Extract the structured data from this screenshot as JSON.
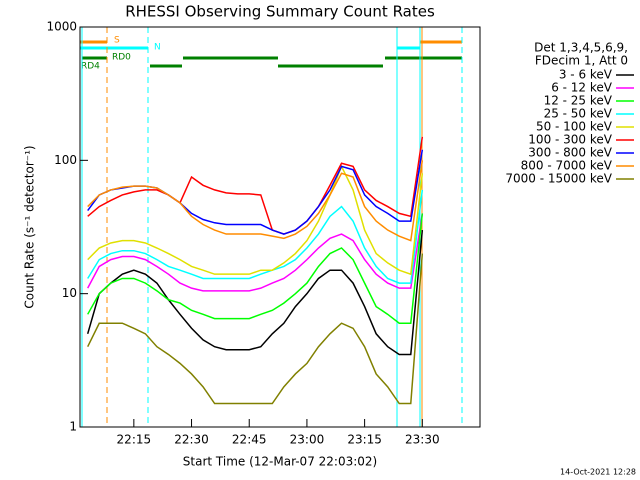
{
  "chart_data": {
    "type": "line",
    "title": "RHESSI Observing Summary Count Rates",
    "x_label": "Start Time (12-Mar-07 22:03:02)",
    "y_label": "Count Rate (s⁻¹ detector⁻¹)",
    "footer": "14-Oct-2021 12:28",
    "legend_header": [
      "Det 1,3,4,5,6,9,",
      "FDecim 1, Att 0"
    ],
    "flags": [
      "S",
      "N",
      "RD0",
      "RD4"
    ],
    "log_y": true,
    "xlim": [
      "22:01",
      "23:45"
    ],
    "xticks": [
      "22:15",
      "22:30",
      "22:45",
      "23:00",
      "23:15",
      "23:30"
    ],
    "ylim": [
      1,
      1000
    ],
    "yticks": [
      1,
      10,
      100,
      1000
    ],
    "x": [
      "22:03",
      "22:06",
      "22:09",
      "22:12",
      "22:15",
      "22:18",
      "22:21",
      "22:24",
      "22:27",
      "22:30",
      "22:33",
      "22:36",
      "22:39",
      "22:42",
      "22:45",
      "22:48",
      "22:51",
      "22:54",
      "22:57",
      "23:00",
      "23:03",
      "23:06",
      "23:09",
      "23:12",
      "23:15",
      "23:18",
      "23:21",
      "23:24",
      "23:27",
      "23:30"
    ],
    "series": [
      {
        "name": "3 - 6 keV",
        "color": "#000000",
        "values": [
          5,
          10,
          12,
          14,
          15,
          14,
          12,
          9,
          7,
          5.5,
          4.5,
          4,
          3.8,
          3.8,
          3.8,
          4,
          5,
          6,
          8,
          10,
          13,
          15,
          15,
          12,
          8,
          5,
          4,
          3.5,
          3.5,
          30
        ]
      },
      {
        "name": "6 - 12 keV",
        "color": "#ff00ff",
        "values": [
          11,
          16,
          18,
          19,
          19,
          18,
          16,
          14,
          12,
          11,
          10.5,
          10.5,
          10.5,
          10.5,
          10.5,
          11,
          12,
          13,
          15,
          18,
          22,
          26,
          28,
          25,
          18,
          14,
          12,
          11,
          11,
          40
        ]
      },
      {
        "name": "12 - 25 keV",
        "color": "#00ff00",
        "values": [
          7,
          10,
          12,
          13,
          13,
          12,
          10.5,
          9,
          8.5,
          7.5,
          7,
          6.5,
          6.5,
          6.5,
          6.5,
          7,
          7.5,
          8.5,
          10,
          12,
          16,
          20,
          22,
          18,
          12,
          8,
          7,
          6,
          6,
          40
        ]
      },
      {
        "name": "25 - 50 keV",
        "color": "#00ffff",
        "values": [
          13,
          18,
          20,
          21,
          21,
          20,
          18,
          16,
          15,
          14,
          13,
          13,
          13,
          13,
          13,
          14,
          15,
          16,
          18,
          22,
          28,
          38,
          45,
          35,
          22,
          16,
          13,
          12,
          12,
          60
        ]
      },
      {
        "name": "50 - 100 keV",
        "color": "#e0e000",
        "values": [
          18,
          22,
          24,
          25,
          25,
          24,
          22,
          20,
          18,
          16,
          15,
          14,
          14,
          14,
          14,
          15,
          15,
          17,
          20,
          25,
          35,
          55,
          90,
          60,
          30,
          20,
          17,
          15,
          14,
          80
        ]
      },
      {
        "name": "100 - 300 keV",
        "color": "#ff0000",
        "values": [
          38,
          45,
          50,
          55,
          58,
          60,
          60,
          55,
          48,
          75,
          65,
          60,
          57,
          56,
          56,
          55,
          30,
          28,
          30,
          35,
          45,
          65,
          95,
          90,
          60,
          50,
          45,
          40,
          38,
          150
        ]
      },
      {
        "name": "300 - 800 keV",
        "color": "#0000ff",
        "values": [
          42,
          55,
          60,
          62,
          64,
          64,
          62,
          55,
          48,
          40,
          36,
          34,
          33,
          33,
          33,
          33,
          30,
          28,
          30,
          35,
          45,
          60,
          90,
          85,
          55,
          45,
          40,
          35,
          35,
          120
        ]
      },
      {
        "name": "800 - 7000 keV",
        "color": "#ff8c00",
        "values": [
          45,
          55,
          60,
          63,
          64,
          64,
          62,
          55,
          48,
          38,
          33,
          30,
          28,
          28,
          28,
          28,
          27,
          26,
          28,
          32,
          40,
          55,
          80,
          75,
          45,
          35,
          30,
          27,
          25,
          100
        ]
      },
      {
        "name": "7000 - 15000 keV",
        "color": "#808000",
        "values": [
          4,
          6,
          6,
          6,
          5.5,
          5,
          4,
          3.5,
          3,
          2.5,
          2,
          1.5,
          1.5,
          1.5,
          1.5,
          1.5,
          1.5,
          2,
          2.5,
          3,
          4,
          5,
          6,
          5.5,
          4,
          2.5,
          2,
          1.5,
          1.5,
          20
        ]
      }
    ]
  }
}
